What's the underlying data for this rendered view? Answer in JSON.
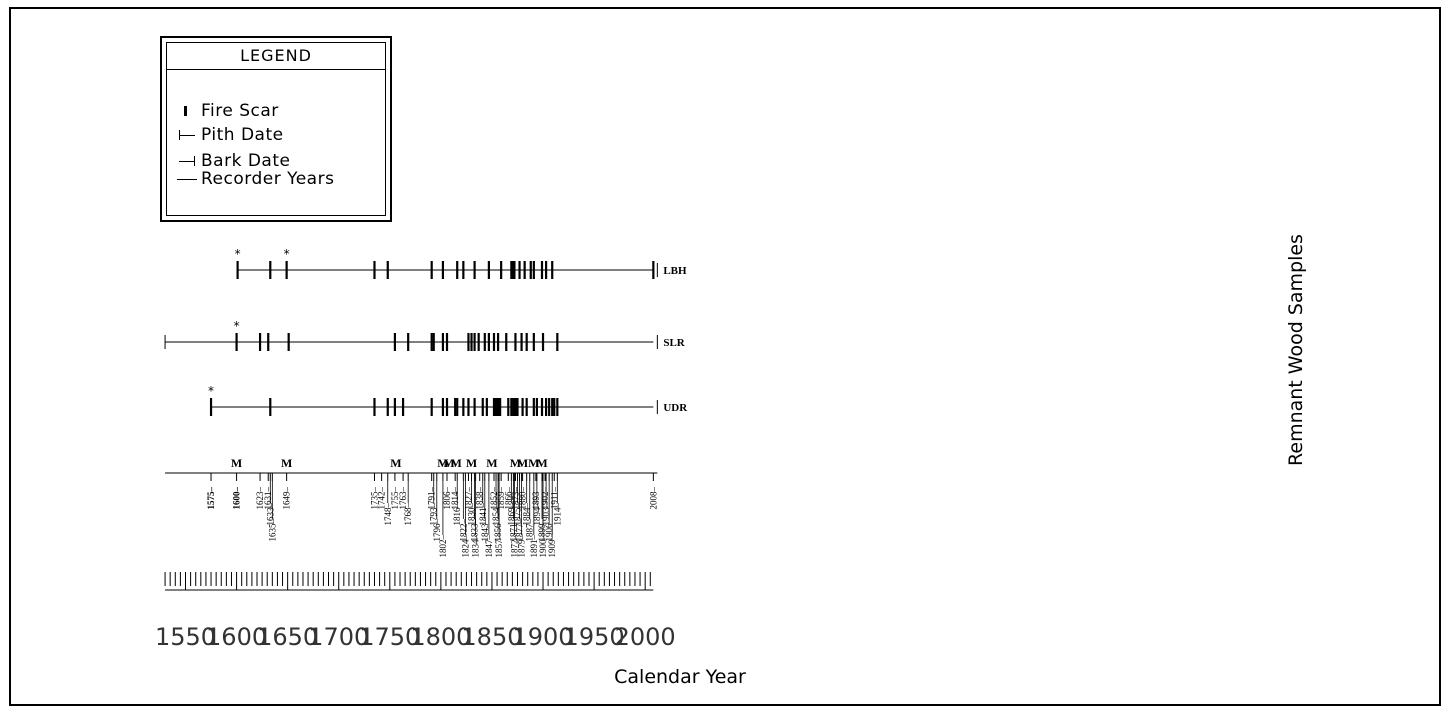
{
  "chart_data": {
    "type": "fire-history",
    "xlabel": "Calendar Year",
    "ylabel": "Remnant Wood Samples",
    "xlim": [
      1530,
      2010
    ],
    "x_ticks": [
      1550,
      1600,
      1650,
      1700,
      1750,
      1800,
      1850,
      1900,
      1950,
      2000
    ],
    "legend": {
      "title": "LEGEND",
      "items": [
        {
          "symbol": "fire-scar",
          "label": "Fire Scar"
        },
        {
          "symbol": "pith-date",
          "label": "Pith Date"
        },
        {
          "symbol": "bark-date",
          "label": "Bark Date"
        },
        {
          "symbol": "recorder-years",
          "label": "Recorder Years"
        }
      ]
    },
    "series": [
      {
        "name": "LBH",
        "start": 1601,
        "end": 2008,
        "start_type": "fire-scar",
        "end_type": "bark",
        "fire_scars": [
          1601,
          1633,
          1649,
          1735,
          1748,
          1791,
          1802,
          1816,
          1822,
          1833,
          1847,
          1859,
          1869,
          1870,
          1871,
          1872,
          1877,
          1882,
          1888,
          1891,
          1899,
          1903,
          1909,
          2008
        ],
        "starred": [
          1601,
          1649
        ]
      },
      {
        "name": "SLR",
        "start": 1530,
        "end": 2008,
        "start_type": "pith",
        "end_type": "bark",
        "fire_scars": [
          1600,
          1623,
          1631,
          1651,
          1755,
          1768,
          1791,
          1793,
          1802,
          1806,
          1827,
          1830,
          1833,
          1837,
          1843,
          1847,
          1852,
          1856,
          1864,
          1873,
          1879,
          1884,
          1891,
          1900,
          1914
        ],
        "starred": [
          1600
        ]
      },
      {
        "name": "UDR",
        "start": 1575,
        "end": 2008,
        "start_type": "fire-scar",
        "end_type": "bark",
        "fire_scars": [
          1575,
          1633,
          1735,
          1748,
          1755,
          1763,
          1791,
          1802,
          1806,
          1814,
          1816,
          1822,
          1827,
          1833,
          1841,
          1845,
          1852,
          1854,
          1856,
          1857,
          1858,
          1866,
          1869,
          1871,
          1873,
          1875,
          1880,
          1884,
          1891,
          1894,
          1899,
          1903,
          1906,
          1909,
          1911,
          1914
        ],
        "starred": [
          1575
        ]
      }
    ],
    "composite": {
      "years": [
        1575,
        1600,
        1623,
        1631,
        1633,
        1635,
        1649,
        1735,
        1742,
        1748,
        1755,
        1763,
        1768,
        1791,
        1793,
        1796,
        1802,
        1806,
        1814,
        1816,
        1822,
        1824,
        1827,
        1830,
        1833,
        1834,
        1838,
        1841,
        1843,
        1847,
        1852,
        1854,
        1856,
        1857,
        1859,
        1866,
        1869,
        1871,
        1872,
        1873,
        1875,
        1877,
        1879,
        1880,
        1884,
        1887,
        1891,
        1893,
        1894,
        1899,
        1900,
        1902,
        1903,
        1906,
        1909,
        1911,
        1914,
        2008
      ],
      "bold_years": [
        1575,
        1600
      ],
      "m_markers": [
        1600,
        1649,
        1756,
        1802,
        1808,
        1815,
        1830,
        1850,
        1873,
        1880,
        1891,
        1899
      ],
      "m_label": "M"
    }
  }
}
